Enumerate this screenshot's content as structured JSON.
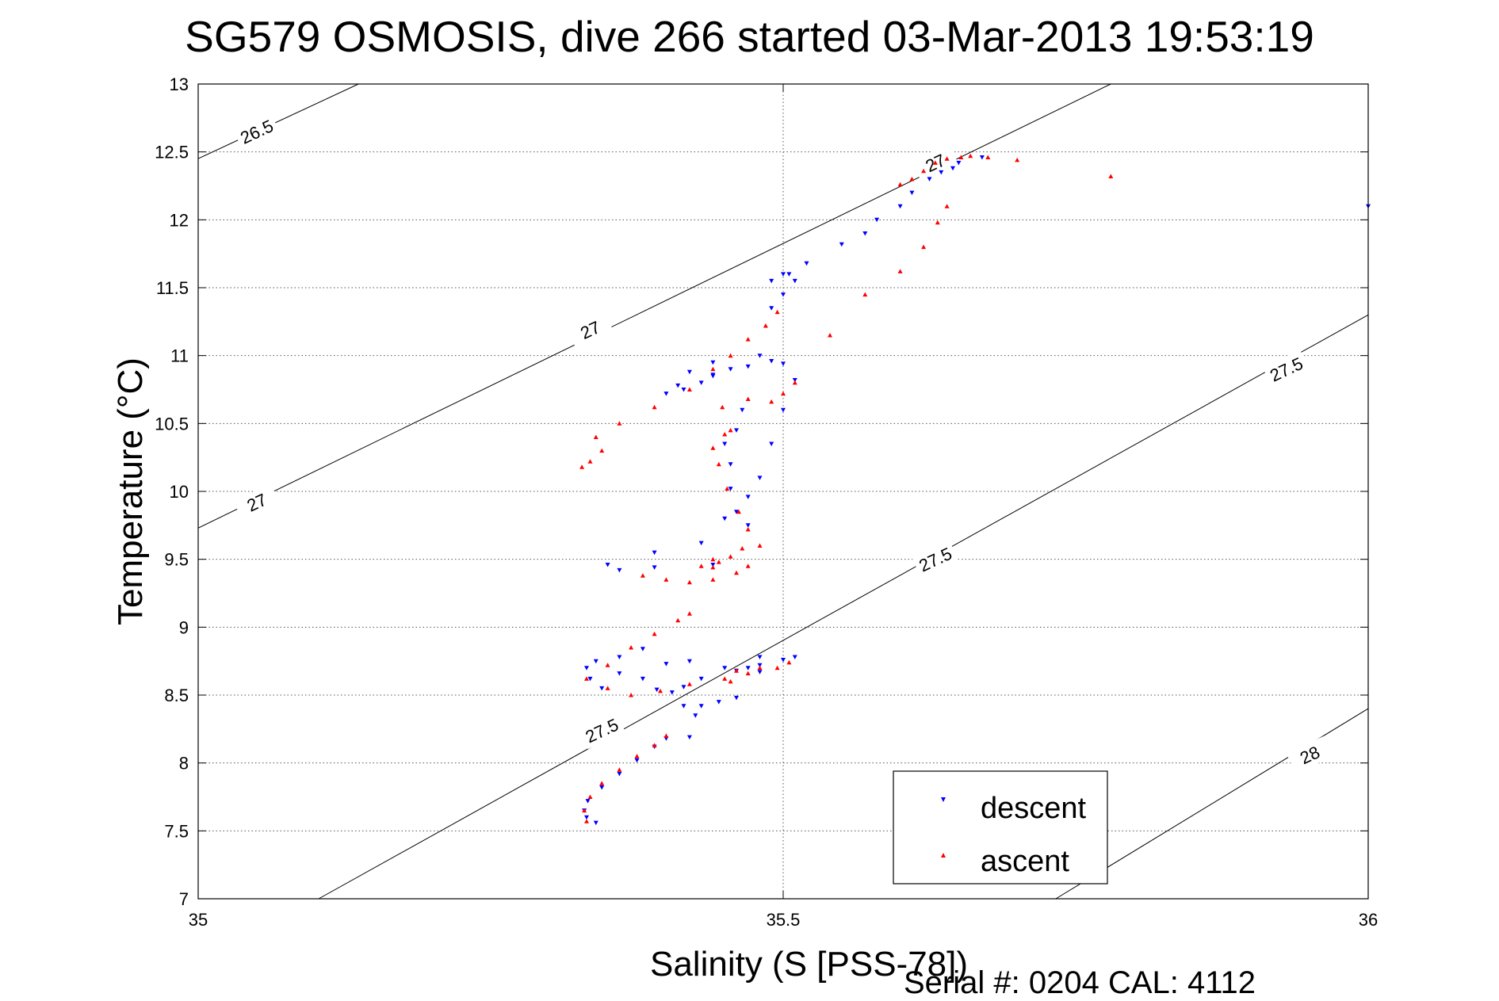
{
  "title": "SG579 OSMOSIS, dive 266 started 03-Mar-2013 19:53:19",
  "footer": {
    "serial_text": "Serial #: 0204  CAL: 4112"
  },
  "colors": {
    "descent": "#0000ff",
    "ascent": "#ff0000",
    "axes": "#000000",
    "grid": "#555555"
  },
  "chart_data": {
    "type": "scatter",
    "title": "SG579 OSMOSIS, dive 266 started 03-Mar-2013 19:53:19",
    "xlabel": "Salinity (S [PSS-78])",
    "ylabel": "Temperature (°C)",
    "xlim": [
      35,
      36
    ],
    "ylim": [
      7,
      13
    ],
    "xticks": [
      "35",
      "35.5",
      "36"
    ],
    "yticks": [
      "7",
      "7.5",
      "8",
      "8.5",
      "9",
      "9.5",
      "10",
      "10.5",
      "11",
      "11.5",
      "12",
      "12.5",
      "13"
    ],
    "grid": true,
    "legend": "bottom-right",
    "series": [
      {
        "name": "descent",
        "marker": "down-triangle",
        "color": "#0000ff",
        "x": [
          35.34,
          35.332,
          35.33,
          35.333,
          35.345,
          35.36,
          35.375,
          35.39,
          35.4,
          35.42,
          35.425,
          35.415,
          35.43,
          35.445,
          35.46,
          35.47,
          35.48,
          35.392,
          35.405,
          35.415,
          35.43,
          35.46,
          35.48,
          35.5,
          35.51,
          35.48,
          35.45,
          35.42,
          35.4,
          35.38,
          35.36,
          35.345,
          35.335,
          35.332,
          35.34,
          35.36,
          35.38,
          35.35,
          35.36,
          35.39,
          35.44,
          35.39,
          35.43,
          35.45,
          35.47,
          35.415,
          35.43,
          35.44,
          35.455,
          35.455,
          35.45,
          35.46,
          35.465,
          35.455,
          35.46,
          35.47,
          35.48,
          35.49,
          35.5,
          35.51,
          35.5,
          35.49,
          35.47,
          35.44,
          35.41,
          35.4,
          35.42,
          35.44,
          35.48,
          35.49,
          35.5,
          35.51,
          35.505,
          35.49,
          35.5,
          35.52,
          35.55,
          35.57,
          35.58,
          35.6,
          35.61,
          35.625,
          35.635,
          35.645,
          35.65,
          35.67,
          36.0
        ],
        "y": [
          7.56,
          7.6,
          7.65,
          7.72,
          7.82,
          7.92,
          8.02,
          8.12,
          8.18,
          8.19,
          8.35,
          8.42,
          8.42,
          8.45,
          8.48,
          8.7,
          8.78,
          8.54,
          8.52,
          8.56,
          8.62,
          8.68,
          8.72,
          8.76,
          8.78,
          8.67,
          8.7,
          8.75,
          8.73,
          8.62,
          8.66,
          8.55,
          8.62,
          8.7,
          8.75,
          8.78,
          8.84,
          9.46,
          9.42,
          9.44,
          9.46,
          9.55,
          9.62,
          9.8,
          9.75,
          10.75,
          10.8,
          10.85,
          10.9,
          10.2,
          10.35,
          10.45,
          10.6,
          10.02,
          9.85,
          9.96,
          10.1,
          10.35,
          10.6,
          10.82,
          10.94,
          10.96,
          10.92,
          10.86,
          10.78,
          10.72,
          10.88,
          10.95,
          11.0,
          11.35,
          11.45,
          11.55,
          11.6,
          11.55,
          11.6,
          11.68,
          11.82,
          11.9,
          12.0,
          12.1,
          12.2,
          12.3,
          12.35,
          12.38,
          12.42,
          12.46,
          12.1
        ]
      },
      {
        "name": "ascent",
        "marker": "up-triangle",
        "color": "#ff0000",
        "x": [
          35.332,
          35.33,
          35.335,
          35.345,
          35.36,
          35.375,
          35.39,
          35.4,
          35.332,
          35.35,
          35.37,
          35.395,
          35.42,
          35.45,
          35.47,
          35.495,
          35.505,
          35.48,
          35.46,
          35.455,
          35.38,
          35.4,
          35.42,
          35.44,
          35.46,
          35.47,
          35.44,
          35.43,
          35.35,
          35.37,
          35.39,
          35.41,
          35.42,
          35.345,
          35.335,
          35.328,
          35.34,
          35.36,
          35.39,
          35.42,
          35.44,
          35.455,
          35.47,
          35.485,
          35.495,
          35.44,
          35.45,
          35.455,
          35.445,
          35.452,
          35.462,
          35.47,
          35.48,
          35.465,
          35.455,
          35.445,
          35.44,
          35.448,
          35.47,
          35.49,
          35.5,
          35.51,
          35.54,
          35.57,
          35.6,
          35.62,
          35.632,
          35.64,
          35.6,
          35.61,
          35.62,
          35.63,
          35.64,
          35.652,
          35.66,
          35.675,
          35.7,
          35.78
        ],
        "y": [
          7.57,
          7.65,
          7.75,
          7.85,
          7.95,
          8.05,
          8.13,
          8.2,
          8.62,
          8.55,
          8.5,
          8.53,
          8.58,
          8.62,
          8.66,
          8.7,
          8.74,
          8.7,
          8.68,
          8.6,
          9.38,
          9.35,
          9.33,
          9.35,
          9.4,
          9.45,
          9.5,
          9.45,
          8.72,
          8.85,
          8.95,
          9.05,
          9.1,
          10.3,
          10.22,
          10.18,
          10.4,
          10.5,
          10.62,
          10.75,
          10.9,
          11.0,
          11.12,
          11.22,
          11.32,
          10.32,
          10.42,
          10.45,
          10.2,
          10.02,
          9.85,
          9.72,
          9.6,
          9.58,
          9.52,
          9.48,
          9.44,
          10.62,
          10.68,
          10.66,
          10.72,
          10.8,
          11.15,
          11.45,
          11.62,
          11.8,
          11.98,
          12.1,
          12.26,
          12.3,
          12.36,
          12.42,
          12.45,
          12.46,
          12.47,
          12.46,
          12.44,
          12.32
        ]
      }
    ],
    "contours": [
      {
        "label": "26.5",
        "points": [
          [
            35.0,
            12.45
          ],
          [
            35.137,
            13.0
          ]
        ]
      },
      {
        "label": "27",
        "points": [
          [
            35.0,
            9.73
          ],
          [
            35.78,
            13.0
          ]
        ]
      },
      {
        "label": "27.5",
        "points": [
          [
            35.103,
            7.0
          ],
          [
            36.0,
            11.3
          ]
        ]
      },
      {
        "label": "28",
        "points": [
          [
            35.733,
            7.0
          ],
          [
            36.0,
            8.4
          ]
        ]
      }
    ],
    "contour_labels": [
      {
        "text": "26.5",
        "x": 35.05,
        "y": 12.65
      },
      {
        "text": "27",
        "x": 35.335,
        "y": 11.19
      },
      {
        "text": "27",
        "x": 35.05,
        "y": 9.92
      },
      {
        "text": "27",
        "x": 35.63,
        "y": 12.42
      },
      {
        "text": "27.5",
        "x": 35.93,
        "y": 10.9
      },
      {
        "text": "27.5",
        "x": 35.63,
        "y": 9.5
      },
      {
        "text": "27.5",
        "x": 35.345,
        "y": 8.24
      },
      {
        "text": "28",
        "x": 35.95,
        "y": 8.06
      }
    ]
  }
}
